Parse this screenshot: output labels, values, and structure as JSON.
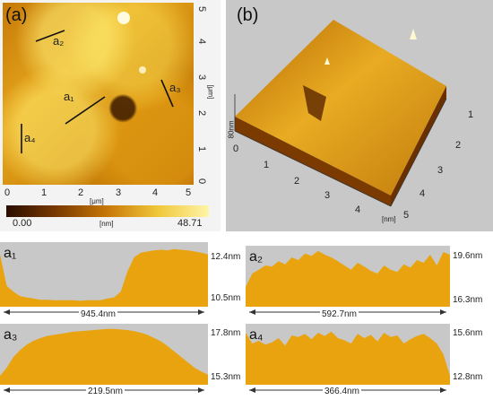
{
  "panel_a": {
    "label": "(a)",
    "x_ticks": [
      "0",
      "1",
      "2",
      "3",
      "4",
      "5"
    ],
    "y_ticks": [
      "5",
      "4",
      "3",
      "2",
      "1",
      "0"
    ],
    "x_unit": "[μm]",
    "y_unit": "[μm]",
    "line_labels": {
      "a1": "a₁",
      "a2": "a₂",
      "a3": "a₃",
      "a4": "a₄"
    },
    "colorbar": {
      "min": "0.00",
      "unit": "[nm]",
      "max": "48.71"
    }
  },
  "panel_b": {
    "label": "(b)",
    "z_label": "80nm",
    "x_ticks": [
      "0",
      "1",
      "2",
      "3",
      "4"
    ],
    "y_ticks": [
      "1",
      "2",
      "3",
      "4",
      "5"
    ],
    "unit": "[nm]"
  },
  "profiles": [
    {
      "label": "a₁",
      "top": "12.4nm",
      "bottom": "10.5nm",
      "length": "945.4nm",
      "values": [
        0.85,
        0.3,
        0.2,
        0.12,
        0.1,
        0.08,
        0.06,
        0.06,
        0.05,
        0.05,
        0.05,
        0.05,
        0.04,
        0.05,
        0.05,
        0.05,
        0.08,
        0.1,
        0.2,
        0.55,
        0.8,
        0.88,
        0.9,
        0.92,
        0.93,
        0.92,
        0.94,
        0.93,
        0.92,
        0.9,
        0.88,
        0.85
      ]
    },
    {
      "label": "a₂",
      "top": "19.6nm",
      "bottom": "16.3nm",
      "length": "592.7nm",
      "values": [
        0.3,
        0.55,
        0.62,
        0.7,
        0.68,
        0.78,
        0.72,
        0.85,
        0.8,
        0.92,
        0.88,
        0.97,
        0.9,
        0.85,
        0.78,
        0.7,
        0.62,
        0.75,
        0.68,
        0.6,
        0.55,
        0.7,
        0.62,
        0.58,
        0.72,
        0.66,
        0.8,
        0.75,
        0.9,
        0.7,
        0.95,
        0.9
      ]
    },
    {
      "label": "a₃",
      "top": "17.8nm",
      "bottom": "15.3nm",
      "length": "219.5nm",
      "values": [
        0.1,
        0.25,
        0.45,
        0.58,
        0.68,
        0.75,
        0.8,
        0.84,
        0.86,
        0.88,
        0.9,
        0.92,
        0.93,
        0.94,
        0.95,
        0.96,
        0.97,
        0.97,
        0.96,
        0.95,
        0.93,
        0.9,
        0.86,
        0.8,
        0.74,
        0.65,
        0.55,
        0.45,
        0.35,
        0.25,
        0.18,
        0.12
      ]
    },
    {
      "label": "a₄",
      "top": "15.6nm",
      "bottom": "12.8nm",
      "length": "366.4nm",
      "values": [
        0.9,
        0.7,
        0.75,
        0.68,
        0.72,
        0.8,
        0.66,
        0.85,
        0.82,
        0.88,
        0.78,
        0.9,
        0.84,
        0.92,
        0.8,
        0.76,
        0.7,
        0.88,
        0.8,
        0.86,
        0.74,
        0.9,
        0.82,
        0.85,
        0.7,
        0.78,
        0.84,
        0.88,
        0.8,
        0.7,
        0.5,
        0.1
      ]
    }
  ]
}
